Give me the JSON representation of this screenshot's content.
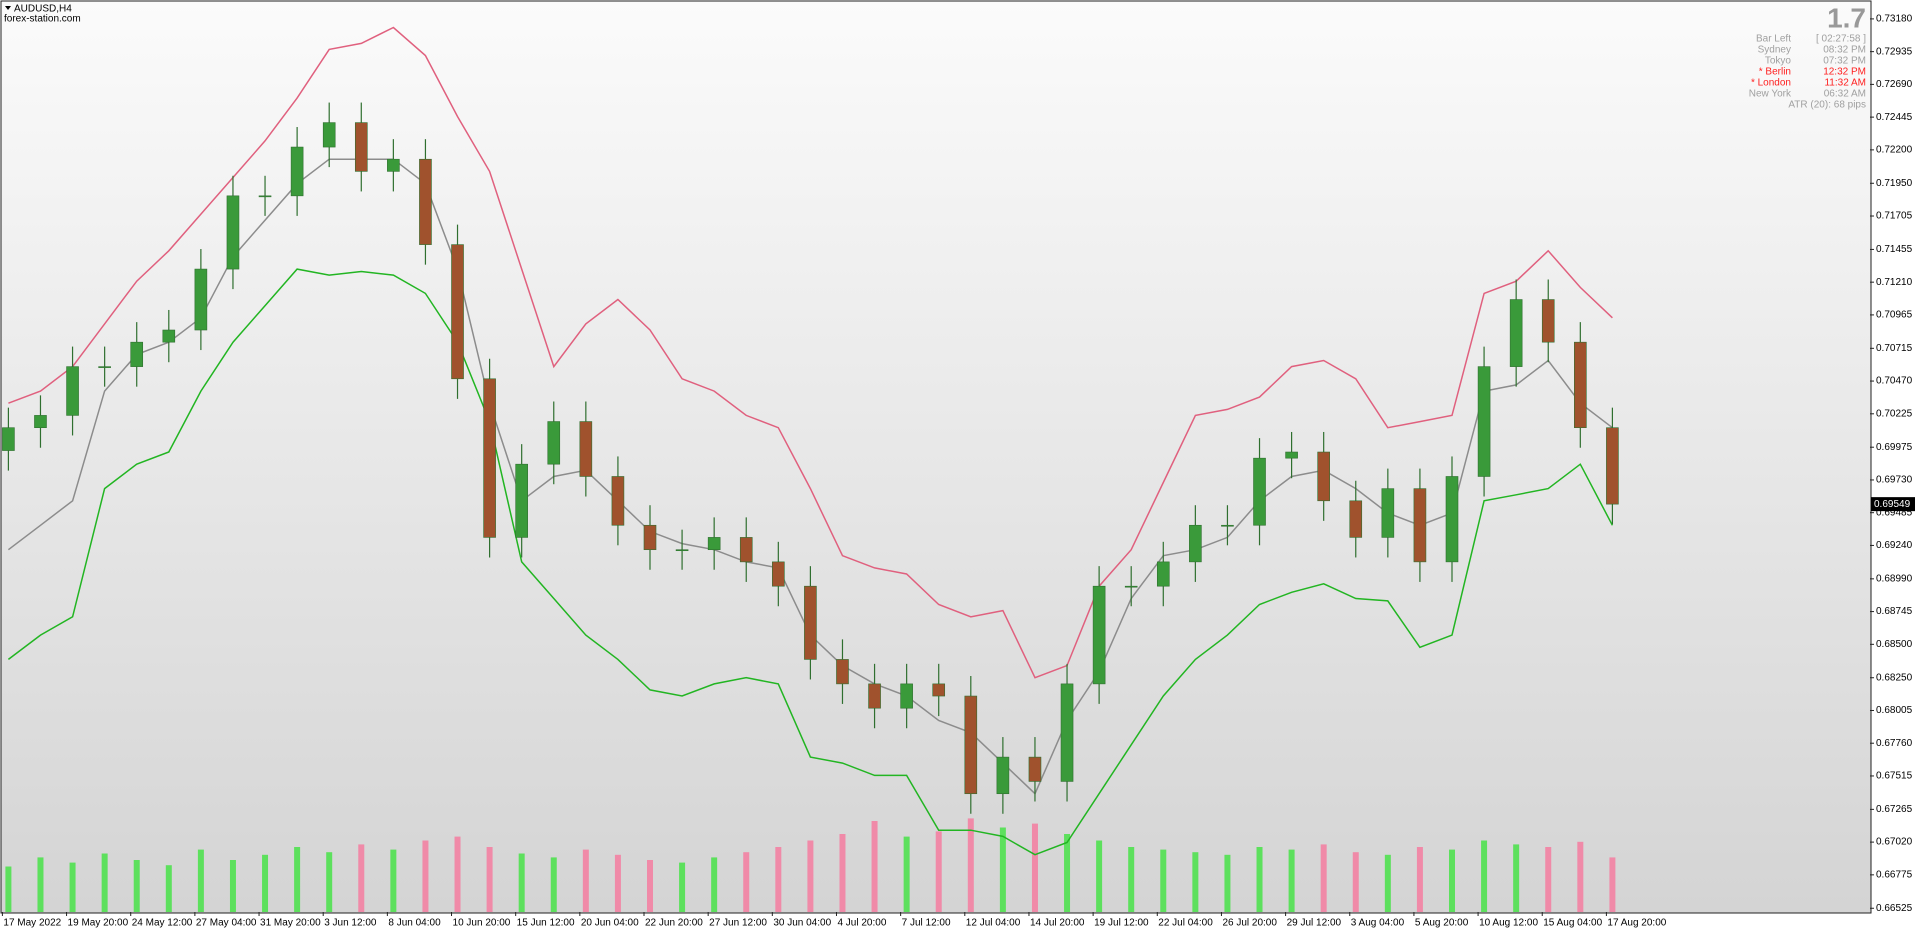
{
  "header": {
    "symbol": "AUDUSD,H4",
    "site": "forex-station.com"
  },
  "info_panel": {
    "spread": "1.7",
    "rows": [
      {
        "label": "Bar Left",
        "value": "[ 02:27:58 ]",
        "color": "#a0a0a0"
      },
      {
        "label": "Sydney",
        "value": "08:32 PM",
        "color": "#a0a0a0"
      },
      {
        "label": "Tokyo",
        "value": "07:32 PM",
        "color": "#a0a0a0"
      },
      {
        "label": "* Berlin",
        "value": "12:32 PM",
        "color": "#ff2020"
      },
      {
        "label": "* London",
        "value": "11:32 AM",
        "color": "#ff2020"
      },
      {
        "label": "New York",
        "value": "06:32 AM",
        "color": "#a0a0a0"
      }
    ],
    "atr": "ATR (20): 68 pips"
  },
  "chart_data": {
    "type": "candlestick",
    "x": [
      "17 May 2022",
      null,
      "19 May 20:00",
      null,
      "24 May 12:00",
      null,
      "27 May 04:00",
      null,
      "31 May 20:00",
      null,
      "3 Jun 12:00",
      null,
      "8 Jun 04:00",
      null,
      "10 Jun 20:00",
      null,
      "15 Jun 12:00",
      null,
      "20 Jun 04:00",
      null,
      "22 Jun 20:00",
      null,
      "27 Jun 12:00",
      null,
      "30 Jun 04:00",
      null,
      "4 Jul 20:00",
      null,
      "7 Jul 12:00",
      null,
      "12 Jul 04:00",
      null,
      "14 Jul 20:00",
      null,
      "19 Jul 12:00",
      null,
      "22 Jul 04:00",
      null,
      "26 Jul 20:00",
      null,
      "29 Jul 12:00",
      null,
      "3 Aug 04:00",
      null,
      "5 Aug 20:00",
      null,
      "10 Aug 12:00",
      null,
      "15 Aug 04:00",
      null,
      "17 Aug 20:00"
    ],
    "open": [
      0.6995,
      0.70121,
      0.70213,
      0.70578,
      0.70578,
      0.70761,
      0.70852,
      0.71308,
      0.71856,
      0.71856,
      0.72221,
      0.72404,
      0.72039,
      0.7213,
      0.71491,
      0.70487,
      0.693,
      0.69848,
      0.70167,
      0.69756,
      0.69391,
      0.69208,
      0.69208,
      0.693,
      0.69117,
      0.68935,
      0.68387,
      0.68204,
      0.68022,
      0.68204,
      0.68113,
      0.67382,
      0.67656,
      0.67474,
      0.68204,
      0.68935,
      0.68935,
      0.69117,
      0.69391,
      0.69391,
      0.69893,
      0.69939,
      0.69574,
      0.693,
      0.69665,
      0.69117,
      0.69756,
      0.70578,
      0.7108,
      0.70761,
      0.70121
    ],
    "high": [
      0.70271,
      0.70363,
      0.70728,
      0.70728,
      0.70911,
      0.71002,
      0.71458,
      0.72006,
      0.72006,
      0.72371,
      0.72554,
      0.72554,
      0.7228,
      0.7228,
      0.71641,
      0.70637,
      0.69998,
      0.70317,
      0.70317,
      0.69906,
      0.69541,
      0.69358,
      0.6945,
      0.6945,
      0.69267,
      0.69085,
      0.68537,
      0.68354,
      0.68354,
      0.68354,
      0.68263,
      0.67806,
      0.67806,
      0.68354,
      0.69085,
      0.69085,
      0.69267,
      0.69541,
      0.69541,
      0.70043,
      0.70089,
      0.70089,
      0.69724,
      0.69815,
      0.69815,
      0.69906,
      0.70728,
      0.7123,
      0.7123,
      0.70911,
      0.70271
    ],
    "low": [
      0.698,
      0.69971,
      0.70063,
      0.70428,
      0.70428,
      0.70611,
      0.70702,
      0.71158,
      0.71706,
      0.71706,
      0.72071,
      0.71889,
      0.71889,
      0.71341,
      0.70337,
      0.6915,
      0.6915,
      0.69698,
      0.69606,
      0.69241,
      0.69058,
      0.69058,
      0.69058,
      0.68967,
      0.68785,
      0.68237,
      0.68054,
      0.67872,
      0.67872,
      0.67963,
      0.67232,
      0.67232,
      0.67324,
      0.67324,
      0.68054,
      0.68785,
      0.68785,
      0.68967,
      0.69241,
      0.69241,
      0.69743,
      0.69424,
      0.6915,
      0.6915,
      0.68967,
      0.68967,
      0.69606,
      0.70428,
      0.70611,
      0.69971,
      0.69399
    ],
    "close": [
      0.70121,
      0.70213,
      0.70578,
      0.70578,
      0.70761,
      0.70852,
      0.71308,
      0.71856,
      0.71856,
      0.72221,
      0.72404,
      0.72039,
      0.7213,
      0.71491,
      0.70487,
      0.693,
      0.69848,
      0.70167,
      0.69756,
      0.69391,
      0.69208,
      0.69208,
      0.693,
      0.69117,
      0.68935,
      0.68387,
      0.68204,
      0.68022,
      0.68204,
      0.68113,
      0.67382,
      0.67656,
      0.67474,
      0.68204,
      0.68935,
      0.68935,
      0.69117,
      0.69391,
      0.69391,
      0.69893,
      0.69939,
      0.69574,
      0.693,
      0.69665,
      0.69117,
      0.69756,
      0.70578,
      0.7108,
      0.70761,
      0.70121,
      0.69549
    ],
    "up_color": "#3a9a3a",
    "down_color": "#a0522d",
    "wick_color": "#2f6f2f",
    "bands": {
      "upper": {
        "color": "#e0607e",
        "values": [
          0.70304,
          0.70395,
          0.70578,
          0.70898,
          0.71217,
          0.71445,
          0.71719,
          0.71993,
          0.72267,
          0.72587,
          0.72952,
          0.72997,
          0.73116,
          0.72906,
          0.7245,
          0.72039,
          0.71308,
          0.70578,
          0.70898,
          0.7108,
          0.70852,
          0.70487,
          0.70395,
          0.70213,
          0.70121,
          0.69665,
          0.69163,
          0.69072,
          0.69026,
          0.68798,
          0.68706,
          0.68752,
          0.6825,
          0.68341,
          0.68935,
          0.69208,
          0.69711,
          0.70213,
          0.70258,
          0.7035,
          0.70578,
          0.70624,
          0.70487,
          0.70121,
          0.70167,
          0.70213,
          0.71126,
          0.71217,
          0.71445,
          0.71171,
          0.70943
        ]
      },
      "middle": {
        "color": "#8c8c8c",
        "values": [
          0.69208,
          0.69391,
          0.69574,
          0.70395,
          0.70669,
          0.70761,
          0.70943,
          0.714,
          0.71674,
          0.71947,
          0.7213,
          0.7213,
          0.7213,
          0.71947,
          0.71308,
          0.70304,
          0.69574,
          0.69756,
          0.69802,
          0.69574,
          0.69345,
          0.69254,
          0.69208,
          0.69117,
          0.69072,
          0.68569,
          0.68341,
          0.68204,
          0.68113,
          0.6793,
          0.67839,
          0.67611,
          0.67382,
          0.6793,
          0.68295,
          0.68843,
          0.69163,
          0.69208,
          0.693,
          0.69574,
          0.69756,
          0.69802,
          0.69665,
          0.69482,
          0.69391,
          0.69482,
          0.70395,
          0.70441,
          0.70624,
          0.70304,
          0.70121
        ]
      },
      "lower": {
        "color": "#22b522",
        "values": [
          0.68387,
          0.68569,
          0.68706,
          0.69665,
          0.69848,
          0.69939,
          0.70395,
          0.70761,
          0.71034,
          0.71308,
          0.71263,
          0.7129,
          0.71263,
          0.71126,
          0.70761,
          0.70167,
          0.69117,
          0.68843,
          0.68569,
          0.68387,
          0.68159,
          0.68113,
          0.68204,
          0.6825,
          0.68204,
          0.67656,
          0.67611,
          0.67519,
          0.67519,
          0.67109,
          0.67109,
          0.67063,
          0.66926,
          0.67017,
          0.67382,
          0.67748,
          0.68113,
          0.68387,
          0.68569,
          0.68798,
          0.68889,
          0.68953,
          0.68843,
          0.68825,
          0.68478,
          0.68569,
          0.69574,
          0.69619,
          0.69665,
          0.69848,
          0.69391
        ]
      }
    },
    "volume": {
      "up_color": "#5de05d",
      "down_color": "#f08aa8",
      "values": [
        35,
        42,
        38,
        45,
        40,
        36,
        48,
        40,
        44,
        50,
        46,
        52,
        48,
        55,
        58,
        50,
        45,
        42,
        48,
        44,
        40,
        38,
        42,
        46,
        50,
        55,
        60,
        70,
        58,
        62,
        72,
        65,
        68,
        60,
        55,
        50,
        48,
        46,
        44,
        50,
        48,
        52,
        46,
        44,
        50,
        48,
        55,
        52,
        50,
        54,
        42
      ]
    },
    "ylim": [
      0.66497,
      0.73299
    ],
    "yticks": [
      {
        "value": 0.7318,
        "label": "0.73180"
      },
      {
        "value": 0.72935,
        "label": "0.72935"
      },
      {
        "value": 0.7269,
        "label": "0.72690"
      },
      {
        "value": 0.72445,
        "label": "0.72445"
      },
      {
        "value": 0.722,
        "label": "0.72200"
      },
      {
        "value": 0.7195,
        "label": "0.71950"
      },
      {
        "value": 0.71705,
        "label": "0.71705"
      },
      {
        "value": 0.71455,
        "label": "0.71455"
      },
      {
        "value": 0.7121,
        "label": "0.71210"
      },
      {
        "value": 0.70965,
        "label": "0.70965"
      },
      {
        "value": 0.70715,
        "label": "0.70715"
      },
      {
        "value": 0.7047,
        "label": "0.70470"
      },
      {
        "value": 0.70225,
        "label": "0.70225"
      },
      {
        "value": 0.69975,
        "label": "0.69975"
      },
      {
        "value": 0.6973,
        "label": "0.69730"
      },
      {
        "value": 0.69485,
        "label": "0.69485"
      },
      {
        "value": 0.6924,
        "label": "0.69240"
      },
      {
        "value": 0.6899,
        "label": "0.68990"
      },
      {
        "value": 0.68745,
        "label": "0.68745"
      },
      {
        "value": 0.685,
        "label": "0.68500"
      },
      {
        "value": 0.6825,
        "label": "0.68250"
      },
      {
        "value": 0.68005,
        "label": "0.68005"
      },
      {
        "value": 0.6776,
        "label": "0.67760"
      },
      {
        "value": 0.67515,
        "label": "0.67515"
      },
      {
        "value": 0.67265,
        "label": "0.67265"
      },
      {
        "value": 0.6702,
        "label": "0.67020"
      },
      {
        "value": 0.66775,
        "label": "0.66775"
      },
      {
        "value": 0.66525,
        "label": "0.66525"
      }
    ]
  }
}
